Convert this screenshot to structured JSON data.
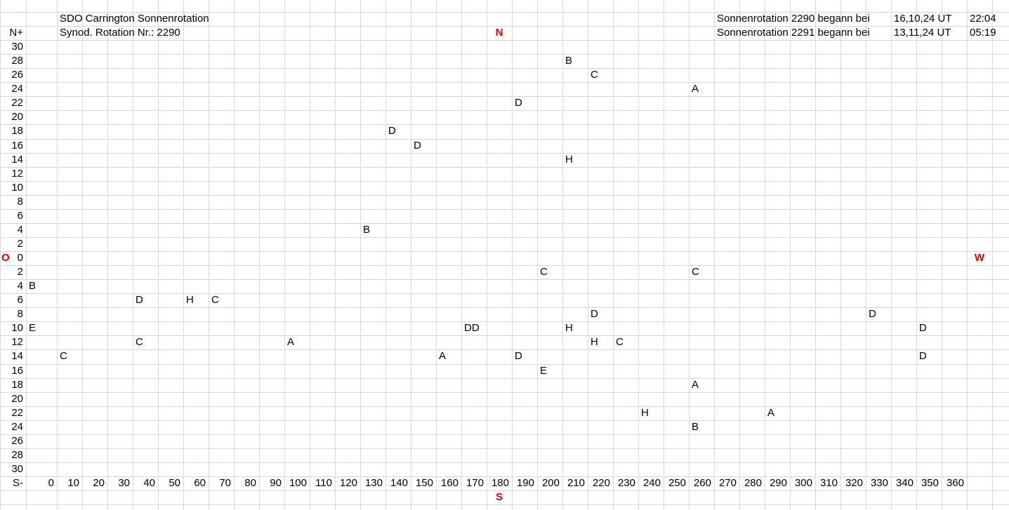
{
  "sheet": {
    "rows": [
      [
        null,
        null,
        null,
        "SDO Carrington Sonnenrotation",
        null,
        null,
        null,
        null,
        null,
        null,
        null,
        null,
        null,
        null,
        null,
        null,
        null,
        null,
        null,
        null,
        null,
        null,
        null,
        null,
        null,
        null,
        null,
        null,
        null,
        "Sonnenrotation 2290 begann bei",
        null,
        null,
        null,
        null,
        null,
        null,
        "16,10,24 UT",
        null,
        null,
        "22:04"
      ],
      [
        null,
        "N+",
        null,
        "Synod. Rotation Nr.: 2290",
        null,
        null,
        null,
        null,
        null,
        null,
        null,
        null,
        null,
        null,
        null,
        null,
        null,
        null,
        null,
        null,
        "N",
        null,
        null,
        null,
        null,
        null,
        null,
        null,
        null,
        "Sonnenrotation 2291 begann bei",
        null,
        null,
        null,
        null,
        null,
        null,
        "13,11,24 UT",
        null,
        null,
        "05:19"
      ],
      [
        null,
        30
      ],
      [
        null,
        28,
        null,
        null,
        null,
        null,
        null,
        null,
        null,
        null,
        null,
        null,
        null,
        null,
        null,
        null,
        null,
        null,
        null,
        null,
        null,
        null,
        null,
        "B"
      ],
      [
        null,
        26,
        null,
        null,
        null,
        null,
        null,
        null,
        null,
        null,
        null,
        null,
        null,
        null,
        null,
        null,
        null,
        null,
        null,
        null,
        null,
        null,
        null,
        null,
        "C"
      ],
      [
        null,
        24,
        null,
        null,
        null,
        null,
        null,
        null,
        null,
        null,
        null,
        null,
        null,
        null,
        null,
        null,
        null,
        null,
        null,
        null,
        null,
        null,
        null,
        null,
        null,
        null,
        null,
        null,
        "A"
      ],
      [
        null,
        22,
        null,
        null,
        null,
        null,
        null,
        null,
        null,
        null,
        null,
        null,
        null,
        null,
        null,
        null,
        null,
        null,
        null,
        null,
        null,
        "D"
      ],
      [
        null,
        20
      ],
      [
        null,
        18,
        null,
        null,
        null,
        null,
        null,
        null,
        null,
        null,
        null,
        null,
        null,
        null,
        null,
        null,
        "D"
      ],
      [
        null,
        16,
        null,
        null,
        null,
        null,
        null,
        null,
        null,
        null,
        null,
        null,
        null,
        null,
        null,
        null,
        null,
        "D"
      ],
      [
        null,
        14,
        null,
        null,
        null,
        null,
        null,
        null,
        null,
        null,
        null,
        null,
        null,
        null,
        null,
        null,
        null,
        null,
        null,
        null,
        null,
        null,
        null,
        "H"
      ],
      [
        null,
        12
      ],
      [
        null,
        10
      ],
      [
        null,
        8
      ],
      [
        null,
        6
      ],
      [
        null,
        4,
        null,
        null,
        null,
        null,
        null,
        null,
        null,
        null,
        null,
        null,
        null,
        null,
        null,
        "B"
      ],
      [
        null,
        2
      ],
      [
        "O",
        0,
        null,
        null,
        null,
        null,
        null,
        null,
        null,
        null,
        null,
        null,
        null,
        null,
        null,
        null,
        null,
        null,
        null,
        null,
        null,
        null,
        null,
        null,
        null,
        null,
        null,
        null,
        null,
        null,
        null,
        null,
        null,
        null,
        null,
        null,
        null,
        null,
        null,
        "W"
      ],
      [
        null,
        2,
        null,
        null,
        null,
        null,
        null,
        null,
        null,
        null,
        null,
        null,
        null,
        null,
        null,
        null,
        null,
        null,
        null,
        null,
        null,
        null,
        "C",
        null,
        null,
        null,
        null,
        null,
        "C"
      ],
      [
        null,
        4,
        "B"
      ],
      [
        null,
        6,
        null,
        null,
        null,
        null,
        "D",
        null,
        "H",
        "C"
      ],
      [
        null,
        8,
        null,
        null,
        null,
        null,
        null,
        null,
        null,
        null,
        null,
        null,
        null,
        null,
        null,
        null,
        null,
        null,
        null,
        null,
        null,
        null,
        null,
        null,
        "D",
        null,
        null,
        null,
        null,
        null,
        null,
        null,
        null,
        null,
        null,
        "D"
      ],
      [
        null,
        10,
        "E",
        null,
        null,
        null,
        null,
        null,
        null,
        null,
        null,
        null,
        null,
        null,
        null,
        null,
        null,
        null,
        null,
        "DD",
        null,
        null,
        null,
        "H",
        null,
        null,
        null,
        null,
        null,
        null,
        null,
        null,
        null,
        null,
        null,
        null,
        null,
        "D"
      ],
      [
        null,
        12,
        null,
        null,
        null,
        null,
        "C",
        null,
        null,
        null,
        null,
        null,
        "A",
        null,
        null,
        null,
        null,
        null,
        null,
        null,
        null,
        null,
        null,
        null,
        "H",
        "C"
      ],
      [
        null,
        14,
        null,
        "C",
        null,
        null,
        null,
        null,
        null,
        null,
        null,
        null,
        null,
        null,
        null,
        null,
        null,
        null,
        "A",
        null,
        null,
        "D",
        null,
        null,
        null,
        null,
        null,
        null,
        null,
        null,
        null,
        null,
        null,
        null,
        null,
        null,
        null,
        "D"
      ],
      [
        null,
        16,
        null,
        null,
        null,
        null,
        null,
        null,
        null,
        null,
        null,
        null,
        null,
        null,
        null,
        null,
        null,
        null,
        null,
        null,
        null,
        null,
        "E"
      ],
      [
        null,
        18,
        null,
        null,
        null,
        null,
        null,
        null,
        null,
        null,
        null,
        null,
        null,
        null,
        null,
        null,
        null,
        null,
        null,
        null,
        null,
        null,
        null,
        null,
        null,
        null,
        null,
        null,
        "A"
      ],
      [
        null,
        20
      ],
      [
        null,
        22,
        null,
        null,
        null,
        null,
        null,
        null,
        null,
        null,
        null,
        null,
        null,
        null,
        null,
        null,
        null,
        null,
        null,
        null,
        null,
        null,
        null,
        null,
        null,
        null,
        "H",
        null,
        null,
        null,
        null,
        "A"
      ],
      [
        null,
        24,
        null,
        null,
        null,
        null,
        null,
        null,
        null,
        null,
        null,
        null,
        null,
        null,
        null,
        null,
        null,
        null,
        null,
        null,
        null,
        null,
        null,
        null,
        null,
        null,
        null,
        null,
        "B"
      ],
      [
        null,
        26
      ],
      [
        null,
        28
      ],
      [
        null,
        30
      ],
      [
        null,
        "S-",
        0,
        10,
        20,
        30,
        40,
        50,
        60,
        70,
        80,
        90,
        100,
        110,
        120,
        130,
        140,
        150,
        160,
        170,
        180,
        190,
        200,
        210,
        220,
        230,
        240,
        250,
        260,
        270,
        280,
        290,
        300,
        310,
        320,
        330,
        340,
        350,
        360
      ],
      [
        null,
        null,
        null,
        null,
        null,
        null,
        null,
        null,
        null,
        null,
        null,
        null,
        null,
        null,
        null,
        null,
        null,
        null,
        null,
        null,
        "S"
      ]
    ]
  }
}
